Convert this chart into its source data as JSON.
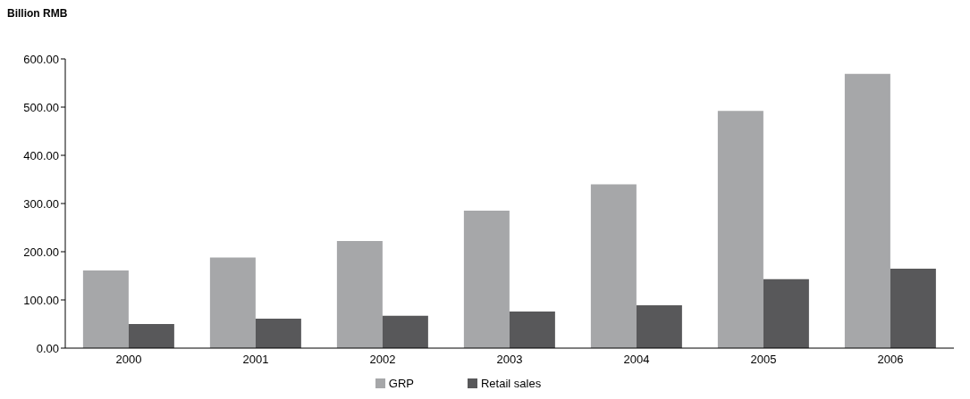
{
  "chart_data": {
    "type": "bar",
    "ylabel": "Billion RMB",
    "categories": [
      "2000",
      "2001",
      "2002",
      "2003",
      "2004",
      "2005",
      "2006"
    ],
    "series": [
      {
        "name": "GRP",
        "color": "#a6a7a9",
        "values": [
          161,
          188,
          222,
          285,
          340,
          492,
          569
        ]
      },
      {
        "name": "Retail sales",
        "color": "#58585a",
        "values": [
          50,
          61,
          67,
          76,
          89,
          143,
          165
        ]
      }
    ],
    "ylim": [
      0,
      600
    ],
    "yticks": [
      {
        "value": 0,
        "label": "0.00"
      },
      {
        "value": 100,
        "label": "100.00"
      },
      {
        "value": 200,
        "label": "200.00"
      },
      {
        "value": 300,
        "label": "300.00"
      },
      {
        "value": 400,
        "label": "400.00"
      },
      {
        "value": 500,
        "label": "500.00"
      },
      {
        "value": 600,
        "label": "600.00"
      }
    ],
    "grid": false,
    "legend": "bottom"
  }
}
